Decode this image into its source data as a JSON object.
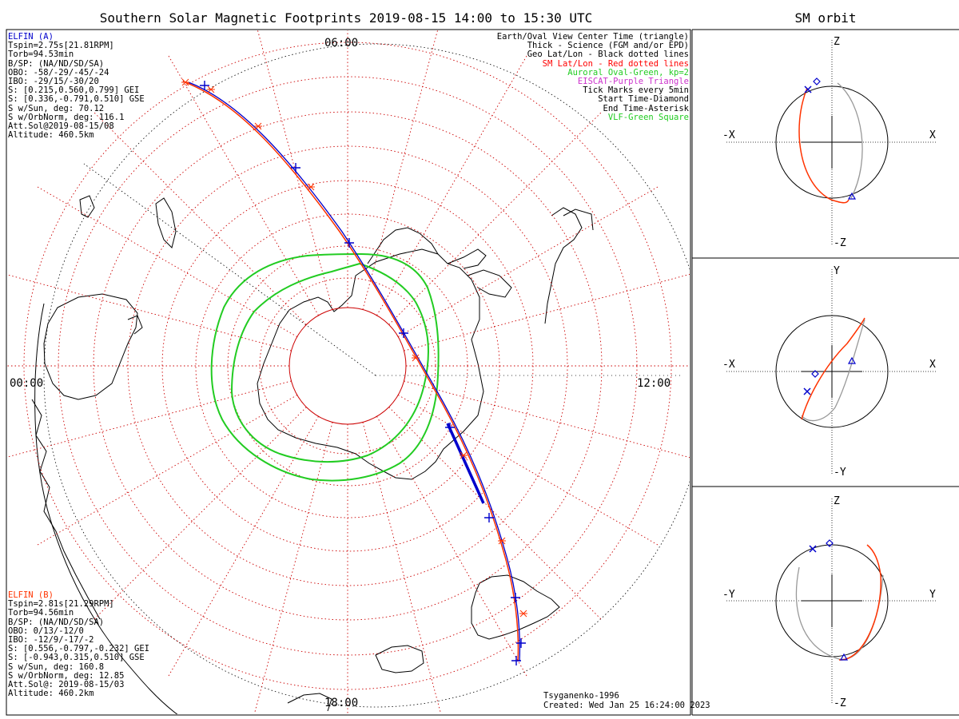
{
  "title": "Southern Solar Magnetic Footprints 2019-08-15 14:00 to 15:30 UTC",
  "side_title": "SM orbit",
  "colors": {
    "elfin_a": "#0000cc",
    "elfin_b": "#ff3300",
    "oval": "#22cc22",
    "grid": "#cc0000",
    "eiscat": "#cc33cc",
    "geo": "#000000",
    "orbit_ref": "#999999"
  },
  "elfin_a": {
    "name": "ELFIN (A)",
    "lines": [
      "Tspin=2.75s[21.81RPM]",
      "Torb=94.53min",
      "B/SP: (NA/ND/SD/SA)",
      "OBO: -58/-29/-45/-24",
      "IBO: -29/15/-30/20",
      "S: [0.215,0.560,0.799] GEI",
      "S: [0.336,-0.791,0.510] GSE",
      "S w/Sun, deg: 70.12",
      "S w/OrbNorm, deg: 116.1",
      "Att.Sol@2019-08-15/08",
      "Altitude: 460.5km"
    ]
  },
  "elfin_b": {
    "name": "ELFIN (B)",
    "lines": [
      "Tspin=2.81s[21.29RPM]",
      "Torb=94.56min",
      "B/SP: (NA/ND/SD/SA)",
      "OBO: 0/13/-12/0",
      "IBO: -12/9/-17/-2",
      "S: [0.556,-0.797,-0.232] GEI",
      "S: [-0.943,0.315,0.510] GSE",
      "S w/Sun, deg: 160.8",
      "S w/OrbNorm, deg: 12.85",
      "Att.Sol@: 2019-08-15/03",
      "Altitude: 460.2km"
    ]
  },
  "legend": [
    {
      "text": "Earth/Oval View Center Time (triangle)",
      "color": "#000000"
    },
    {
      "text": "Thick - Science (FGM and/or EPD)",
      "color": "#000000"
    },
    {
      "text": "Geo Lat/Lon - Black dotted lines",
      "color": "#000000"
    },
    {
      "text": "SM Lat/Lon - Red dotted lines",
      "color": "#ff0000"
    },
    {
      "text": "Auroral Oval-Green, kp=2",
      "color": "#22cc22"
    },
    {
      "text": "EISCAT-Purple Triangle",
      "color": "#cc33cc"
    },
    {
      "text": "Tick Marks every 5min",
      "color": "#000000"
    },
    {
      "text": "Start Time-Diamond",
      "color": "#000000"
    },
    {
      "text": "End Time-Asterisk",
      "color": "#000000"
    },
    {
      "text": "VLF-Green Square",
      "color": "#22cc22"
    }
  ],
  "footer": {
    "model": "Tsyganenko-1996",
    "created": "Created: Wed Jan 25 16:24:00 2023"
  },
  "chart_data": [
    {
      "type": "polar-map",
      "title": "Southern Solar Magnetic Footprints 2019-08-15 14:00 to 15:30 UTC",
      "mlt_labels": [
        {
          "text": "06:00",
          "mlt": 6
        },
        {
          "text": "12:00",
          "mlt": 12
        },
        {
          "text": "18:00",
          "mlt": 18
        },
        {
          "text": "00:00",
          "mlt": 0
        }
      ],
      "tick_interval_min": 5,
      "auroral_oval_kp": 2
    },
    {
      "type": "orbit-projection",
      "title": "SM orbit",
      "panels": [
        {
          "h_left": "-X",
          "h_right": "X",
          "v_top": "Z",
          "v_bottom": "-Z"
        },
        {
          "h_left": "-X",
          "h_right": "X",
          "v_top": "Y",
          "v_bottom": "-Y"
        },
        {
          "h_left": "-Y",
          "h_right": "Y",
          "v_top": "Z",
          "v_bottom": "-Z"
        }
      ]
    }
  ]
}
